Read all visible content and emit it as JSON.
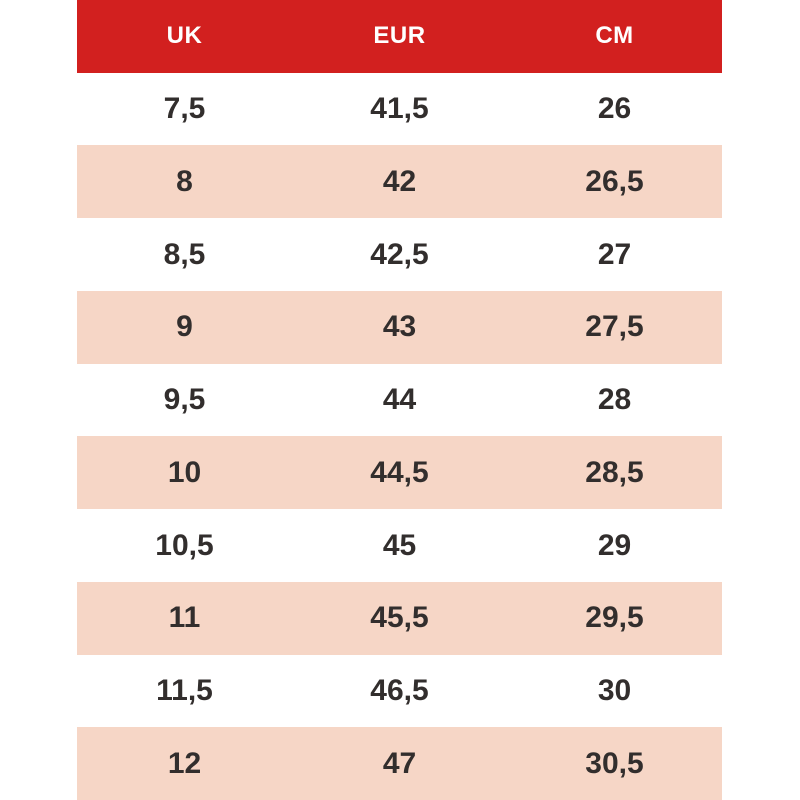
{
  "chart_data": {
    "type": "table",
    "columns": [
      "UK",
      "EUR",
      "CM"
    ],
    "rows": [
      [
        "7,5",
        "41,5",
        "26"
      ],
      [
        "8",
        "42",
        "26,5"
      ],
      [
        "8,5",
        "42,5",
        "27"
      ],
      [
        "9",
        "43",
        "27,5"
      ],
      [
        "9,5",
        "44",
        "28"
      ],
      [
        "10",
        "44,5",
        "28,5"
      ],
      [
        "10,5",
        "45",
        "29"
      ],
      [
        "11",
        "45,5",
        "29,5"
      ],
      [
        "11,5",
        "46,5",
        "30"
      ],
      [
        "12",
        "47",
        "30,5"
      ]
    ],
    "layout_hints": {
      "header_position": "top",
      "row_striping": "alternating starting at second data row",
      "grid": "off",
      "text_align": "center"
    }
  },
  "colors": {
    "page_bg": "#ffffff",
    "header_bg": "#d2201f",
    "header_text": "#ffffff",
    "row_bg": "#ffffff",
    "row_alt_bg": "#f6d6c6",
    "cell_text": "#322e2d"
  }
}
